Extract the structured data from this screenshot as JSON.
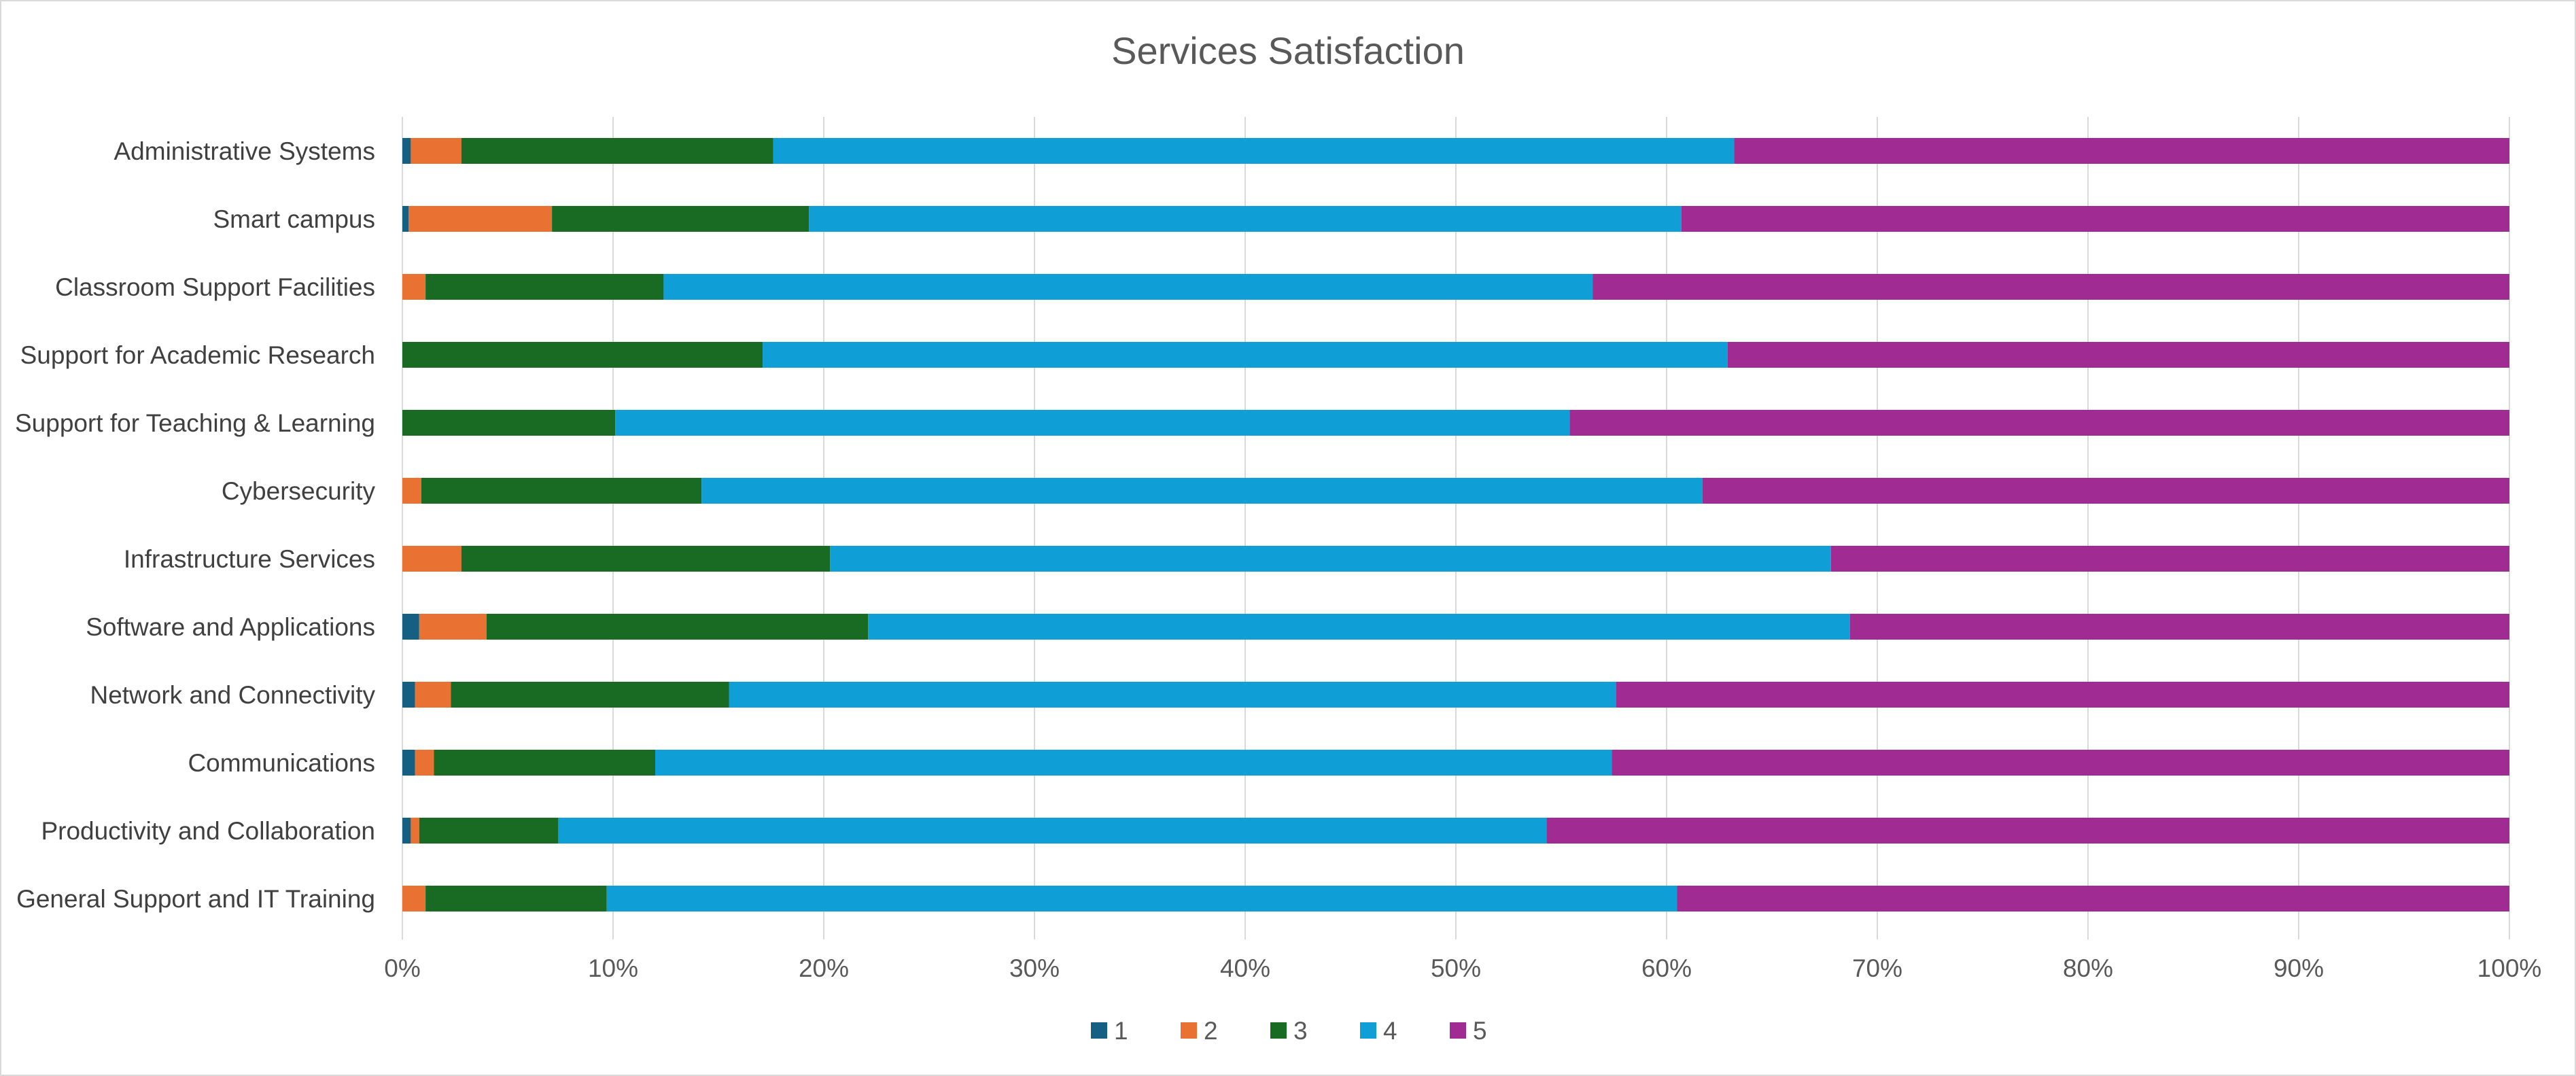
{
  "chart_data": {
    "type": "bar",
    "orientation": "horizontal",
    "stacked": "percent",
    "title": "Services Satisfaction",
    "xlabel": "",
    "ylabel": "",
    "xlim": [
      0,
      100
    ],
    "x_ticks": [
      "0%",
      "10%",
      "20%",
      "30%",
      "40%",
      "50%",
      "60%",
      "70%",
      "80%",
      "90%",
      "100%"
    ],
    "grid": "vertical",
    "legend_position": "bottom",
    "categories": [
      "Administrative Systems",
      "Smart campus",
      "Classroom Support Facilities",
      "Support for Academic Research",
      "Support for Teaching & Learning",
      "Cybersecurity",
      "Infrastructure Services",
      "Software and Applications",
      "Network and Connectivity",
      "Communications",
      "Productivity and Collaboration",
      "General Support and IT Training"
    ],
    "series": [
      {
        "name": "1",
        "color": "#156082",
        "values": [
          0.4,
          0.3,
          0,
          0,
          0,
          0,
          0,
          0.8,
          0.6,
          0.6,
          0.4,
          0
        ]
      },
      {
        "name": "2",
        "color": "#e97132",
        "values": [
          2.4,
          6.8,
          1.1,
          0,
          0,
          0.9,
          2.8,
          3.2,
          1.7,
          0.9,
          0.4,
          1.1
        ]
      },
      {
        "name": "3",
        "color": "#196b24",
        "values": [
          14.8,
          12.2,
          11.3,
          17.1,
          10.1,
          13.3,
          17.5,
          18.1,
          13.2,
          10.5,
          6.6,
          8.6
        ]
      },
      {
        "name": "4",
        "color": "#0f9ed5",
        "values": [
          45.6,
          41.4,
          44.1,
          45.8,
          45.3,
          47.5,
          47.5,
          46.6,
          42.1,
          45.4,
          46.9,
          50.8
        ]
      },
      {
        "name": "5",
        "color": "#a02b93",
        "values": [
          36.8,
          39.3,
          43.5,
          37.1,
          44.6,
          38.3,
          32.2,
          31.3,
          42.4,
          42.6,
          45.7,
          39.5
        ]
      }
    ]
  }
}
